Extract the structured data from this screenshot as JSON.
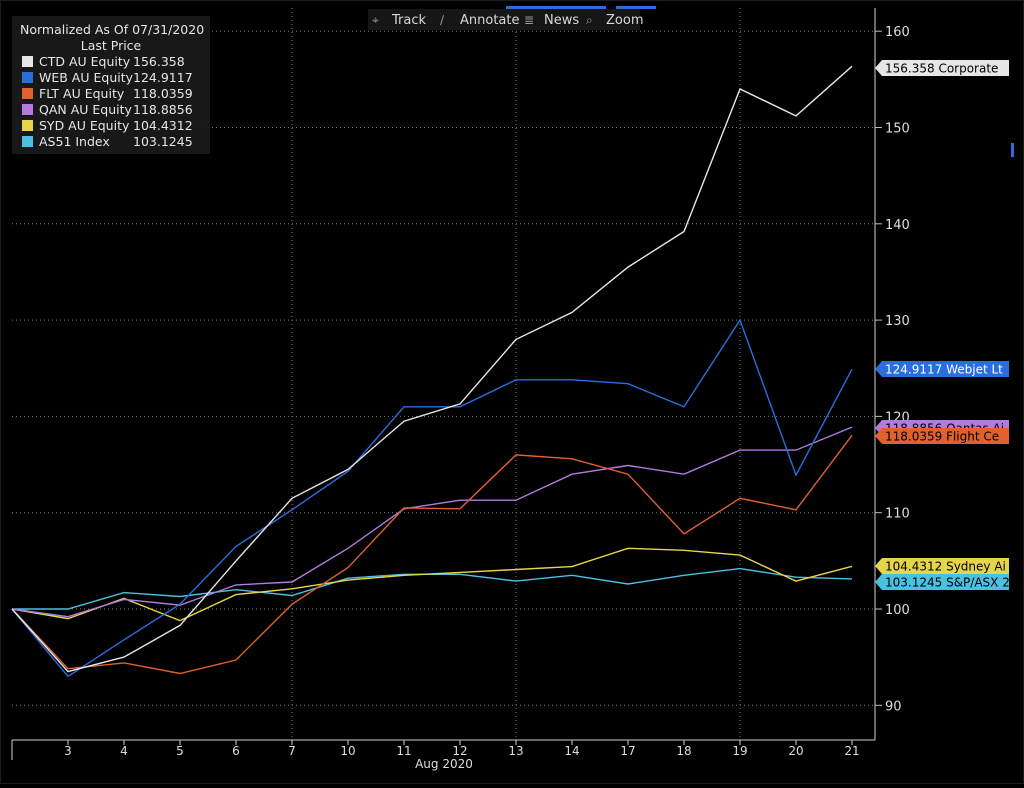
{
  "toolbar": {
    "items": [
      {
        "label": "Track",
        "icon": "crosshair-icon"
      },
      {
        "label": "Annotate",
        "icon": "pencil-icon"
      },
      {
        "label": "News",
        "icon": "news-icon"
      },
      {
        "label": "Zoom",
        "icon": "magnifier-icon"
      }
    ]
  },
  "legend": {
    "title": "Normalized As Of 07/31/2020",
    "subtitle": "Last Price",
    "entries": [
      {
        "name": "CTD AU Equity",
        "value": "156.358"
      },
      {
        "name": "WEB AU Equity",
        "value": "124.9117"
      },
      {
        "name": "FLT AU Equity",
        "value": "118.0359"
      },
      {
        "name": "QAN AU Equity",
        "value": "118.8856"
      },
      {
        "name": "SYD AU Equity",
        "value": "104.4312"
      },
      {
        "name": "AS51 Index",
        "value": "103.1245"
      }
    ]
  },
  "chart_data": {
    "type": "line",
    "title": "Normalized As Of 07/31/2020",
    "xlabel": "Aug 2020",
    "ylabel": "",
    "categories": [
      "",
      "3",
      "4",
      "5",
      "6",
      "7",
      "10",
      "11",
      "12",
      "13",
      "14",
      "17",
      "18",
      "19",
      "20",
      "21"
    ],
    "ylim": [
      87,
      163
    ],
    "yticks": [
      90,
      100,
      110,
      120,
      130,
      140,
      150,
      160
    ],
    "grid": true,
    "legend_position": "top-left",
    "series": [
      {
        "name": "CTD AU Equity",
        "color": "#e6e6e6",
        "values": [
          100,
          93.5,
          95.0,
          98.3,
          105.0,
          111.5,
          114.5,
          119.5,
          121.3,
          128.0,
          130.8,
          135.5,
          139.2,
          154.0,
          151.2,
          156.358
        ],
        "tag": "156.358 Corporate",
        "tag_text_color": "#000000"
      },
      {
        "name": "WEB AU Equity",
        "color": "#2a6edb",
        "values": [
          100,
          93.0,
          96.8,
          100.5,
          106.5,
          110.3,
          114.3,
          121.0,
          121.0,
          123.8,
          123.8,
          123.4,
          121.0,
          130.0,
          113.9,
          124.9117
        ],
        "tag": "124.9117 Webjet Lt",
        "tag_text_color": "#ffffff"
      },
      {
        "name": "FLT AU Equity",
        "color": "#e0612e",
        "values": [
          100,
          93.8,
          94.4,
          93.3,
          94.7,
          100.5,
          104.3,
          110.5,
          110.4,
          116.0,
          115.6,
          114.0,
          107.8,
          111.5,
          110.3,
          118.0359
        ],
        "tag": "118.0359 Flight Ce",
        "tag_text_color": "#000000"
      },
      {
        "name": "QAN AU Equity",
        "color": "#b07ce0",
        "values": [
          100,
          99.2,
          101.0,
          100.4,
          102.5,
          102.8,
          106.3,
          110.4,
          111.3,
          111.3,
          114.0,
          114.9,
          114.0,
          116.5,
          116.5,
          118.8856
        ],
        "tag": "118.8856 Qantas Ai",
        "tag_text_color": "#000000"
      },
      {
        "name": "SYD AU Equity",
        "color": "#e8d44a",
        "values": [
          100,
          99.0,
          101.1,
          98.8,
          101.5,
          102.1,
          103.0,
          103.5,
          103.8,
          104.1,
          104.4,
          106.3,
          106.1,
          105.6,
          102.9,
          104.4312
        ],
        "tag": "104.4312 Sydney Ai",
        "tag_text_color": "#000000"
      },
      {
        "name": "AS51 Index",
        "color": "#4cc0e0",
        "values": [
          100,
          100.0,
          101.7,
          101.3,
          102.0,
          101.4,
          103.2,
          103.6,
          103.6,
          102.9,
          103.5,
          102.6,
          103.5,
          104.2,
          103.3,
          103.1245
        ],
        "tag": "103.1245 S&P/ASX 2",
        "tag_text_color": "#000000"
      }
    ]
  }
}
